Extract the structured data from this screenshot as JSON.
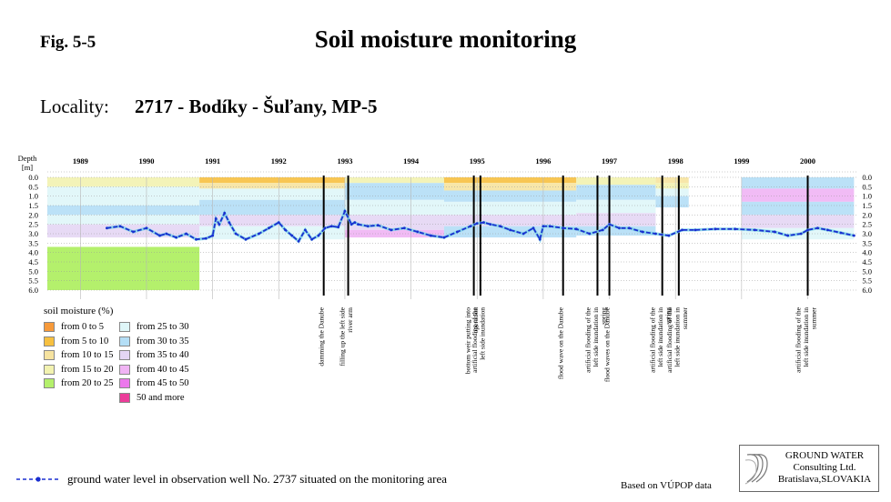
{
  "header": {
    "fig_label": "Fig. 5-5",
    "title": "Soil moisture monitoring",
    "locality_label": "Locality:",
    "locality_value": "2717 - Bodíky - Šuľany, MP-5"
  },
  "legend": {
    "title": "soil moisture (%)",
    "items": [
      {
        "label": "from 0 to 5",
        "color": "#f79a3a"
      },
      {
        "label": "from 5 to 10",
        "color": "#f7c040"
      },
      {
        "label": "from 10 to 15",
        "color": "#f6e3a0"
      },
      {
        "label": "from 15 to 20",
        "color": "#f2f2b0"
      },
      {
        "label": "from 20 to 25",
        "color": "#b4f06c"
      },
      {
        "label": "from 25 to 30",
        "color": "#dff6f8"
      },
      {
        "label": "from 30 to 35",
        "color": "#b4def6"
      },
      {
        "label": "from 35 to 40",
        "color": "#e4d6f4"
      },
      {
        "label": "from 40 to 45",
        "color": "#f0b4f4"
      },
      {
        "label": "from 45 to 50",
        "color": "#ec78ec"
      },
      {
        "label": "50 and more",
        "color": "#ec3c9a"
      }
    ]
  },
  "footer": {
    "gw_legend": "ground water level in observation well No. 2737 situated on the monitoring area",
    "based_on": "Based on VÚPOP data",
    "company": [
      "GROUND WATER",
      "Consulting Ltd.",
      "Bratislava,SLOVAKIA"
    ]
  },
  "chart_data": {
    "type": "heatmap",
    "ylabel": "Depth [m]",
    "y_ticks": [
      "0.0",
      "0.5",
      "1.0",
      "1.5",
      "2.0",
      "2.5",
      "3.0",
      "3.5",
      "4.0",
      "4.5",
      "5.0",
      "5.5",
      "6.0"
    ],
    "ylim": [
      0,
      6
    ],
    "xlim": [
      1988.5,
      2000.75
    ],
    "x_ticks": [
      "1989",
      "1990",
      "1991",
      "1992",
      "1993",
      "1994",
      "1995",
      "1996",
      "1997",
      "1998",
      "1999",
      "2000"
    ],
    "grid": true,
    "series": [
      {
        "name": "ground water level in observation well No. 2737 situated on the monitoring area",
        "color": "#1a2fd0",
        "x": [
          1989.4,
          1989.6,
          1989.8,
          1990.0,
          1990.2,
          1990.3,
          1990.45,
          1990.6,
          1990.75,
          1990.9,
          1991.0,
          1991.05,
          1991.1,
          1991.18,
          1991.25,
          1991.35,
          1991.5,
          1991.7,
          1991.85,
          1992.0,
          1992.1,
          1992.2,
          1992.3,
          1992.4,
          1992.5,
          1992.6,
          1992.7,
          1992.8,
          1992.9,
          1993.0,
          1993.1,
          1993.15,
          1993.2,
          1993.35,
          1993.5,
          1993.7,
          1993.9,
          1994.1,
          1994.3,
          1994.5,
          1994.7,
          1994.9,
          1995.0,
          1995.1,
          1995.2,
          1995.35,
          1995.5,
          1995.7,
          1995.85,
          1995.95,
          1996.0,
          1996.1,
          1996.3,
          1996.5,
          1996.7,
          1996.9,
          1997.0,
          1997.15,
          1997.3,
          1997.5,
          1997.7,
          1997.9,
          1998.1,
          1998.3,
          1998.6,
          1998.9,
          1999.2,
          1999.5,
          1999.7,
          1999.9,
          2000.0,
          2000.15,
          2000.3,
          2000.5,
          2000.7
        ],
        "y": [
          2.7,
          2.6,
          2.9,
          2.7,
          3.1,
          3.0,
          3.2,
          3.0,
          3.3,
          3.25,
          3.1,
          2.2,
          2.5,
          1.9,
          2.4,
          3.0,
          3.3,
          3.0,
          2.7,
          2.4,
          2.8,
          3.1,
          3.4,
          2.8,
          3.3,
          3.1,
          2.7,
          2.6,
          2.65,
          1.8,
          2.5,
          2.4,
          2.5,
          2.6,
          2.55,
          2.8,
          2.7,
          2.9,
          3.1,
          3.2,
          2.9,
          2.6,
          2.45,
          2.4,
          2.5,
          2.6,
          2.8,
          3.0,
          2.7,
          3.3,
          2.6,
          2.6,
          2.7,
          2.75,
          3.0,
          2.8,
          2.5,
          2.7,
          2.7,
          2.9,
          3.0,
          3.1,
          2.8,
          2.8,
          2.75,
          2.75,
          2.8,
          2.9,
          3.1,
          3.0,
          2.8,
          2.7,
          2.8,
          2.95,
          3.1
        ]
      }
    ],
    "events": [
      {
        "x": 1992.68,
        "label": "damming the Danube"
      },
      {
        "x": 1993.05,
        "label": "filling up the left side river arm"
      },
      {
        "x": 1994.95,
        "label": "bottom weir putting into operation"
      },
      {
        "x": 1995.05,
        "label": "artificial flooding of the left side inundation"
      },
      {
        "x": 1996.3,
        "label": "flood wave on the Danube"
      },
      {
        "x": 1996.82,
        "label": "artificial flooding of the left side inundation in spring"
      },
      {
        "x": 1997.0,
        "label": "flood waves on the Danube"
      },
      {
        "x": 1997.8,
        "label": "artificial flooding of the left side inundation in spring"
      },
      {
        "x": 1998.05,
        "label": "artificial flooding of the left side inundation in summer"
      },
      {
        "x": 2000.0,
        "label": "artificial flooding of the left side inundation in summer"
      }
    ]
  }
}
